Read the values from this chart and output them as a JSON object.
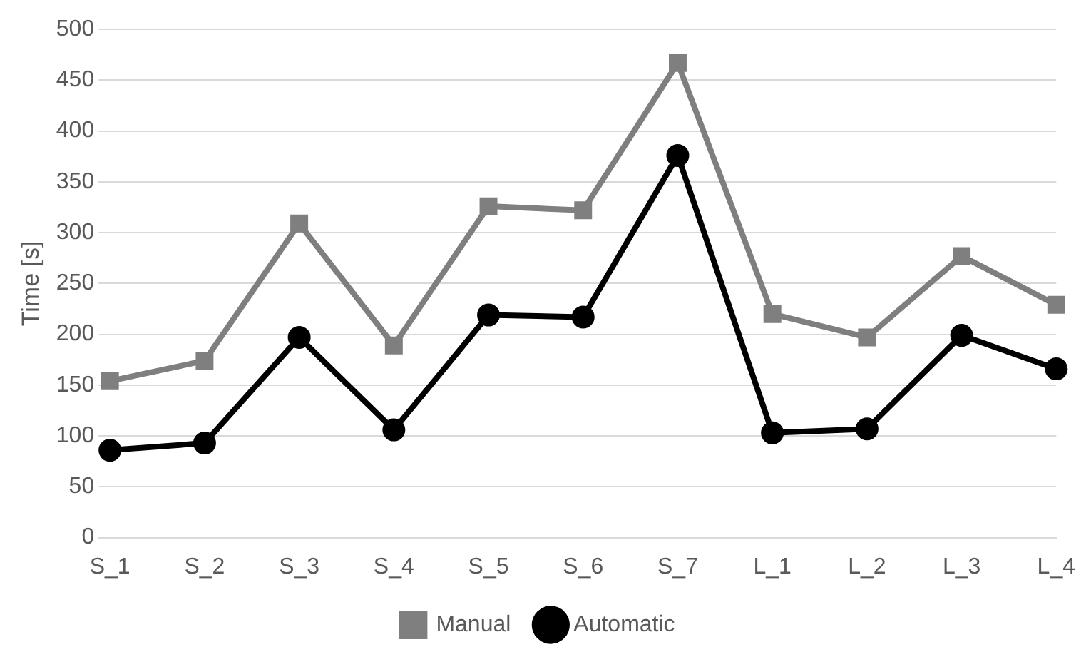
{
  "chart_data": {
    "type": "line",
    "ylabel": "Time [s]",
    "categories": [
      "S_1",
      "S_2",
      "S_3",
      "S_4",
      "S_5",
      "S_6",
      "S_7",
      "L_1",
      "L_2",
      "L_3",
      "L_4"
    ],
    "series": [
      {
        "name": "Manual",
        "color": "#7f7f7f",
        "marker": "square",
        "values": [
          154,
          174,
          309,
          189,
          326,
          322,
          467,
          220,
          197,
          277,
          229
        ]
      },
      {
        "name": "Automatic",
        "color": "#000000",
        "marker": "circle",
        "values": [
          86,
          93,
          197,
          106,
          219,
          217,
          376,
          103,
          107,
          199,
          166
        ]
      }
    ],
    "ylim": [
      0,
      500
    ],
    "yticks": [
      0,
      50,
      100,
      150,
      200,
      250,
      300,
      350,
      400,
      450,
      500
    ],
    "grid": "y",
    "legend": "bottom"
  }
}
